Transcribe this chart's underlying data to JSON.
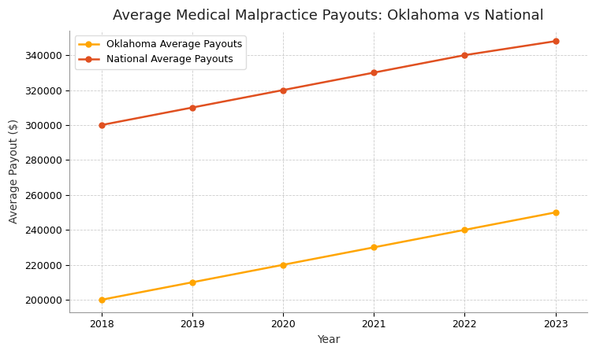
{
  "title": "Average Medical Malpractice Payouts: Oklahoma vs National",
  "xlabel": "Year",
  "ylabel": "Average Payout ($)",
  "years": [
    2018,
    2019,
    2020,
    2021,
    2022,
    2023
  ],
  "oklahoma_values": [
    200000,
    210000,
    220000,
    230000,
    240000,
    250000
  ],
  "national_values": [
    300000,
    310000,
    320000,
    330000,
    340000,
    348000
  ],
  "oklahoma_color": "#FFA500",
  "national_color": "#E05020",
  "oklahoma_label": "Oklahoma Average Payouts",
  "national_label": "National Average Payouts",
  "background_color": "#FFFFFF",
  "ylim_min": 193000,
  "ylim_max": 354000,
  "xlim_min": 2017.65,
  "xlim_max": 2023.35,
  "title_fontsize": 13,
  "axis_label_fontsize": 10,
  "tick_fontsize": 9,
  "legend_fontsize": 9,
  "linewidth": 1.8,
  "marker": "o",
  "markersize": 5
}
